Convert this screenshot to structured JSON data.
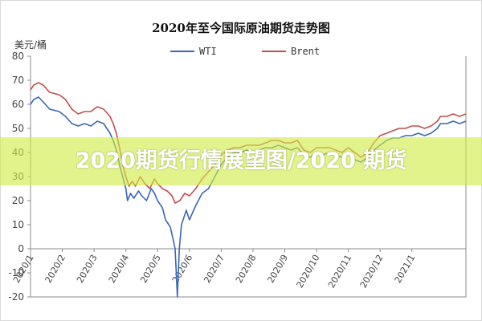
{
  "chart_data": {
    "type": "line",
    "title": "2020年至今国际原油期货走势图",
    "ylabel": "美元/桶",
    "ylim": [
      -20,
      80
    ],
    "yticks": [
      -20,
      -10,
      0,
      10,
      20,
      30,
      40,
      50,
      60,
      70,
      80
    ],
    "xlim": [
      0,
      13.7
    ],
    "month_ticks": [
      "2020/1",
      "2020/2",
      "2020/3",
      "2020/4",
      "2020/5",
      "2020/6",
      "2020/7",
      "2020/8",
      "2020/9",
      "2020/10",
      "2020/11",
      "2020/12",
      "2021/1"
    ],
    "legend_position": "top",
    "series": [
      {
        "name": "WTI",
        "color": "#3a67b4",
        "points": [
          [
            0,
            60
          ],
          [
            0.1,
            62
          ],
          [
            0.25,
            63
          ],
          [
            0.4,
            61
          ],
          [
            0.6,
            58
          ],
          [
            0.9,
            57
          ],
          [
            1.1,
            55
          ],
          [
            1.3,
            52
          ],
          [
            1.5,
            51
          ],
          [
            1.7,
            52
          ],
          [
            1.9,
            51
          ],
          [
            2.1,
            53
          ],
          [
            2.3,
            52
          ],
          [
            2.5,
            48
          ],
          [
            2.6,
            45
          ],
          [
            2.7,
            41
          ],
          [
            2.8,
            35
          ],
          [
            2.9,
            30
          ],
          [
            3.0,
            25
          ],
          [
            3.05,
            20
          ],
          [
            3.15,
            23
          ],
          [
            3.25,
            21
          ],
          [
            3.4,
            24
          ],
          [
            3.5,
            22
          ],
          [
            3.65,
            20
          ],
          [
            3.8,
            25
          ],
          [
            3.9,
            23
          ],
          [
            4.0,
            20
          ],
          [
            4.15,
            17
          ],
          [
            4.25,
            12
          ],
          [
            4.4,
            9
          ],
          [
            4.55,
            0
          ],
          [
            4.62,
            -20
          ],
          [
            4.68,
            0
          ],
          [
            4.75,
            10
          ],
          [
            4.9,
            16
          ],
          [
            5.0,
            12
          ],
          [
            5.2,
            18
          ],
          [
            5.4,
            23
          ],
          [
            5.6,
            25
          ],
          [
            5.8,
            30
          ],
          [
            6.0,
            35
          ],
          [
            6.2,
            38
          ],
          [
            6.4,
            40
          ],
          [
            6.6,
            40
          ],
          [
            6.8,
            41
          ],
          [
            7.0,
            40
          ],
          [
            7.2,
            41
          ],
          [
            7.4,
            42
          ],
          [
            7.6,
            42
          ],
          [
            7.8,
            43
          ],
          [
            8.0,
            42
          ],
          [
            8.2,
            41
          ],
          [
            8.4,
            42
          ],
          [
            8.6,
            39
          ],
          [
            8.8,
            38
          ],
          [
            9.0,
            40
          ],
          [
            9.2,
            39
          ],
          [
            9.4,
            40
          ],
          [
            9.6,
            39
          ],
          [
            9.8,
            38
          ],
          [
            10.0,
            40
          ],
          [
            10.2,
            37
          ],
          [
            10.4,
            36
          ],
          [
            10.6,
            38
          ],
          [
            10.8,
            41
          ],
          [
            11.0,
            43
          ],
          [
            11.2,
            45
          ],
          [
            11.4,
            46
          ],
          [
            11.6,
            46
          ],
          [
            11.8,
            47
          ],
          [
            12.0,
            47
          ],
          [
            12.2,
            48
          ],
          [
            12.4,
            47
          ],
          [
            12.6,
            48
          ],
          [
            12.8,
            50
          ],
          [
            12.9,
            52
          ],
          [
            13.1,
            52
          ],
          [
            13.3,
            53
          ],
          [
            13.5,
            52
          ],
          [
            13.7,
            53
          ]
        ]
      },
      {
        "name": "Brent",
        "color": "#c0504d",
        "points": [
          [
            0,
            66
          ],
          [
            0.1,
            68
          ],
          [
            0.25,
            69
          ],
          [
            0.4,
            68
          ],
          [
            0.6,
            65
          ],
          [
            0.9,
            64
          ],
          [
            1.1,
            62
          ],
          [
            1.3,
            58
          ],
          [
            1.5,
            56
          ],
          [
            1.7,
            57
          ],
          [
            1.9,
            57
          ],
          [
            2.1,
            59
          ],
          [
            2.3,
            58
          ],
          [
            2.5,
            55
          ],
          [
            2.6,
            52
          ],
          [
            2.7,
            48
          ],
          [
            2.8,
            42
          ],
          [
            2.9,
            35
          ],
          [
            3.0,
            30
          ],
          [
            3.1,
            26
          ],
          [
            3.2,
            28
          ],
          [
            3.3,
            26
          ],
          [
            3.45,
            30
          ],
          [
            3.6,
            27
          ],
          [
            3.75,
            25
          ],
          [
            3.9,
            29
          ],
          [
            4.0,
            27
          ],
          [
            4.15,
            25
          ],
          [
            4.3,
            24
          ],
          [
            4.45,
            22
          ],
          [
            4.55,
            19
          ],
          [
            4.7,
            20
          ],
          [
            4.85,
            23
          ],
          [
            5.0,
            22
          ],
          [
            5.2,
            25
          ],
          [
            5.4,
            29
          ],
          [
            5.6,
            32
          ],
          [
            5.8,
            35
          ],
          [
            6.0,
            39
          ],
          [
            6.2,
            41
          ],
          [
            6.4,
            42
          ],
          [
            6.6,
            42
          ],
          [
            6.8,
            43
          ],
          [
            7.0,
            43
          ],
          [
            7.2,
            43
          ],
          [
            7.4,
            44
          ],
          [
            7.6,
            45
          ],
          [
            7.8,
            45
          ],
          [
            8.0,
            44
          ],
          [
            8.2,
            44
          ],
          [
            8.4,
            45
          ],
          [
            8.6,
            41
          ],
          [
            8.8,
            40
          ],
          [
            9.0,
            42
          ],
          [
            9.2,
            42
          ],
          [
            9.4,
            42
          ],
          [
            9.6,
            41
          ],
          [
            9.8,
            40
          ],
          [
            10.0,
            42
          ],
          [
            10.2,
            40
          ],
          [
            10.4,
            38
          ],
          [
            10.6,
            40
          ],
          [
            10.8,
            44
          ],
          [
            11.0,
            47
          ],
          [
            11.2,
            48
          ],
          [
            11.4,
            49
          ],
          [
            11.6,
            50
          ],
          [
            11.8,
            50
          ],
          [
            12.0,
            51
          ],
          [
            12.2,
            51
          ],
          [
            12.4,
            50
          ],
          [
            12.6,
            51
          ],
          [
            12.8,
            53
          ],
          [
            12.9,
            55
          ],
          [
            13.1,
            55
          ],
          [
            13.3,
            56
          ],
          [
            13.5,
            55
          ],
          [
            13.7,
            56
          ]
        ]
      }
    ]
  },
  "banner": {
    "text": "2020期货行情展望图/2020 期货",
    "color": "#d2ec46"
  }
}
